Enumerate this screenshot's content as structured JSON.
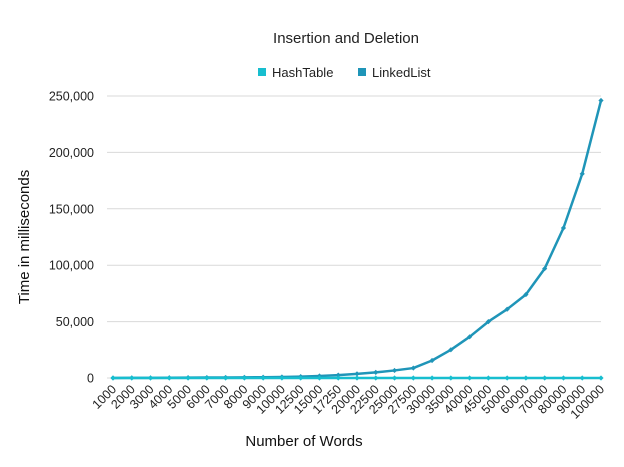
{
  "chart_data": {
    "type": "line",
    "title": "Insertion and Deletion",
    "xlabel": "Number of Words",
    "ylabel": "Time in milliseconds",
    "legend_position": "top-center",
    "grid": "horizontal",
    "ylim": [
      0,
      250000
    ],
    "yticks": [
      0,
      50000,
      100000,
      150000,
      200000,
      250000
    ],
    "ytick_labels": [
      "0",
      "50,000",
      "100,000",
      "150,000",
      "200,000",
      "250,000"
    ],
    "categories": [
      "1000",
      "2000",
      "3000",
      "4000",
      "5000",
      "6000",
      "7000",
      "8000",
      "9000",
      "10000",
      "12500",
      "15000",
      "17250",
      "20000",
      "22500",
      "25000",
      "27500",
      "30000",
      "35000",
      "40000",
      "45000",
      "50000",
      "60000",
      "70000",
      "80000",
      "90000",
      "100000"
    ],
    "series": [
      {
        "name": "HashTable",
        "color": "#17becf",
        "values": [
          0,
          0,
          0,
          0,
          0,
          0,
          0,
          0,
          0,
          0,
          0,
          0,
          0,
          0,
          0,
          0,
          0,
          0,
          0,
          0,
          0,
          0,
          0,
          0,
          0,
          0,
          0
        ]
      },
      {
        "name": "LinkedList",
        "color": "#1f95b8",
        "values": [
          50,
          100,
          150,
          200,
          300,
          400,
          500,
          600,
          700,
          900,
          1200,
          1800,
          2600,
          3700,
          5000,
          6700,
          8800,
          15500,
          25000,
          36500,
          50000,
          61000,
          74000,
          97000,
          133000,
          181000,
          246000
        ]
      }
    ]
  }
}
